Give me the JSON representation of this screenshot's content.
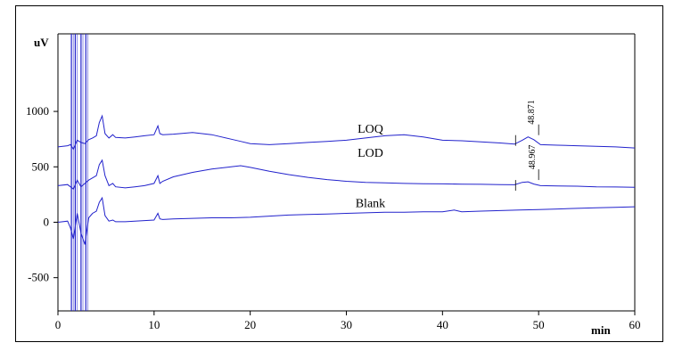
{
  "chart_data": {
    "type": "line",
    "xlabel": "min",
    "ylabel": "uV",
    "xlim": [
      0,
      60
    ],
    "ylim": [
      -800,
      1700
    ],
    "x_ticks": [
      0,
      10,
      20,
      30,
      40,
      50,
      60
    ],
    "y_ticks": [
      -500,
      0,
      500,
      1000
    ],
    "grid": false,
    "line_color": "#2222cc",
    "series": [
      {
        "name": "LOQ",
        "x": [
          0,
          1.0,
          1.3,
          1.6,
          2.0,
          2.4,
          2.8,
          3.2,
          3.6,
          4.0,
          4.3,
          4.6,
          4.9,
          5.3,
          5.7,
          6.0,
          7,
          8,
          9,
          10,
          10.4,
          10.6,
          10.9,
          12,
          14,
          16,
          18,
          19,
          20,
          22,
          24,
          26,
          28,
          30,
          32,
          34,
          36,
          38,
          40,
          42,
          44,
          46,
          47.5,
          48.3,
          48.9,
          49.5,
          50.2,
          52,
          54,
          56,
          58,
          60
        ],
        "values": [
          680,
          690,
          700,
          660,
          740,
          720,
          710,
          745,
          760,
          780,
          900,
          960,
          800,
          760,
          790,
          765,
          760,
          770,
          780,
          790,
          870,
          800,
          790,
          795,
          810,
          790,
          750,
          730,
          710,
          700,
          710,
          720,
          730,
          740,
          760,
          780,
          790,
          770,
          740,
          735,
          725,
          715,
          705,
          740,
          770,
          745,
          700,
          695,
          690,
          685,
          680,
          670
        ]
      },
      {
        "name": "LOD",
        "x": [
          0,
          1.0,
          1.3,
          1.6,
          2.0,
          2.4,
          2.8,
          3.2,
          3.6,
          4.0,
          4.3,
          4.6,
          4.9,
          5.3,
          5.7,
          6.0,
          7,
          8,
          9,
          10,
          10.4,
          10.6,
          10.9,
          12,
          14,
          16,
          18,
          19,
          20,
          22,
          24,
          26,
          28,
          30,
          32,
          34,
          36,
          38,
          40,
          42,
          44,
          46,
          47.5,
          48.3,
          48.9,
          49.5,
          50.2,
          52,
          54,
          56,
          58,
          60
        ],
        "values": [
          330,
          340,
          320,
          300,
          380,
          320,
          350,
          380,
          400,
          420,
          520,
          560,
          420,
          330,
          350,
          320,
          310,
          320,
          330,
          350,
          420,
          350,
          370,
          410,
          450,
          480,
          500,
          510,
          495,
          460,
          430,
          405,
          385,
          370,
          360,
          355,
          350,
          348,
          346,
          344,
          342,
          340,
          338,
          360,
          365,
          345,
          330,
          328,
          325,
          320,
          318,
          315
        ]
      },
      {
        "name": "Blank",
        "x": [
          0,
          1.0,
          1.3,
          1.6,
          2.0,
          2.4,
          2.8,
          3.2,
          3.6,
          4.0,
          4.3,
          4.6,
          4.9,
          5.3,
          5.7,
          6.0,
          7,
          8,
          9,
          10,
          10.4,
          10.6,
          10.9,
          12,
          14,
          16,
          18,
          20,
          22,
          24,
          26,
          28,
          30,
          32,
          34,
          36,
          38,
          40,
          41.2,
          42,
          44,
          46,
          48,
          50,
          52,
          54,
          56,
          58,
          60
        ],
        "values": [
          0,
          10,
          -50,
          -150,
          80,
          -100,
          -200,
          40,
          80,
          100,
          180,
          220,
          60,
          10,
          20,
          5,
          5,
          10,
          15,
          20,
          80,
          30,
          25,
          30,
          35,
          40,
          40,
          45,
          55,
          65,
          70,
          75,
          80,
          85,
          90,
          90,
          95,
          95,
          110,
          95,
          100,
          105,
          110,
          115,
          120,
          125,
          130,
          135,
          140
        ]
      }
    ],
    "annotations": [
      {
        "text": "48.871",
        "x": 48.871,
        "y": 770
      },
      {
        "text": "48.967",
        "x": 48.967,
        "y": 365
      }
    ]
  }
}
